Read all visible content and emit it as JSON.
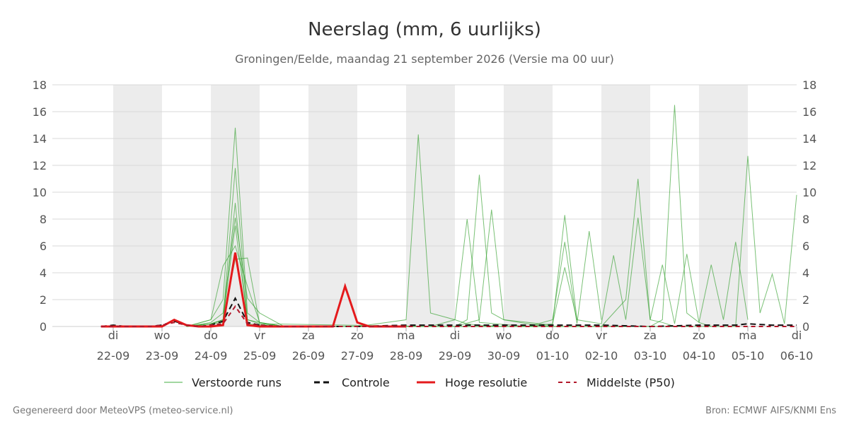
{
  "chart_data": {
    "type": "line",
    "title": "Neerslag (mm, 6 uurlijks)",
    "subtitle": "Groningen/Eelde, maandag 21 september 2026 (Versie ma 00 uur)",
    "ylim": [
      0,
      18
    ],
    "y_ticks": [
      0,
      2,
      4,
      6,
      8,
      10,
      12,
      14,
      16,
      18
    ],
    "x_start": "2026-09-21",
    "x_end": "2026-10-06",
    "x_ticks": [
      {
        "day": "di",
        "date": "22-09"
      },
      {
        "day": "wo",
        "date": "23-09"
      },
      {
        "day": "do",
        "date": "24-09"
      },
      {
        "day": "vr",
        "date": "25-09"
      },
      {
        "day": "za",
        "date": "26-09"
      },
      {
        "day": "zo",
        "date": "27-09"
      },
      {
        "day": "ma",
        "date": "28-09"
      },
      {
        "day": "di",
        "date": "29-09"
      },
      {
        "day": "wo",
        "date": "30-09"
      },
      {
        "day": "do",
        "date": "01-10"
      },
      {
        "day": "vr",
        "date": "02-10"
      },
      {
        "day": "za",
        "date": "03-10"
      },
      {
        "day": "zo",
        "date": "04-10"
      },
      {
        "day": "ma",
        "date": "05-10"
      },
      {
        "day": "di",
        "date": "06-10"
      }
    ],
    "shaded_days": [
      "22-09",
      "24-09",
      "26-09",
      "28-09",
      "30-09",
      "02-10",
      "04-10"
    ],
    "grid": true,
    "legend_position": "bottom",
    "series": [
      {
        "name": "Controle",
        "color": "#111111",
        "dash": "dashed",
        "x": [
          0.75,
          1.0,
          1.25,
          1.5,
          1.75,
          2.0,
          2.25,
          2.5,
          2.75,
          3.0,
          3.25,
          3.5,
          3.75,
          4.0,
          4.25,
          4.5,
          5.0,
          6.0,
          7.0,
          8.0,
          9.0,
          10.0,
          11.0,
          12.0,
          13.0,
          13.75,
          14.0,
          14.5,
          15.0
        ],
        "y": [
          0,
          0.1,
          0,
          0,
          0,
          0.1,
          0.4,
          0.1,
          0,
          0.1,
          0.4,
          2.1,
          0.3,
          0.1,
          0,
          0,
          0,
          0,
          0.1,
          0.1,
          0.1,
          0.1,
          0.1,
          0,
          0.1,
          0.1,
          0.2,
          0.1,
          0.1
        ]
      },
      {
        "name": "Hoge resolutie",
        "color": "#e41a1c",
        "dash": "solid",
        "x": [
          0.75,
          1.0,
          1.25,
          1.5,
          1.75,
          2.0,
          2.25,
          2.5,
          2.75,
          3.0,
          3.25,
          3.5,
          3.75,
          4.0,
          4.25,
          4.5,
          5.0,
          5.25,
          5.5,
          5.75,
          6.0,
          6.25,
          6.5,
          6.75,
          7.0
        ],
        "y": [
          0,
          0,
          0,
          0,
          0,
          0,
          0.5,
          0.1,
          0,
          0,
          0.1,
          5.5,
          0.1,
          0,
          0,
          0,
          0,
          0,
          0,
          3.0,
          0.3,
          0,
          0,
          0,
          0
        ]
      },
      {
        "name": "Middelste (P50)",
        "color": "#b2182b",
        "dash": "dashed",
        "x": [
          0.75,
          1.0,
          1.25,
          1.5,
          1.75,
          2.0,
          2.25,
          2.5,
          2.75,
          3.0,
          3.25,
          3.5,
          3.75,
          4.0,
          4.5,
          5.0,
          6.0,
          7.0,
          8.0,
          9.0,
          10.0,
          11.0,
          12.0,
          13.0,
          14.0,
          15.0
        ],
        "y": [
          0,
          0,
          0,
          0,
          0,
          0.1,
          0.3,
          0.1,
          0,
          0.1,
          0.2,
          1.5,
          0.2,
          0.1,
          0,
          0,
          0,
          0,
          0,
          0,
          0,
          0,
          0,
          0,
          0,
          0
        ]
      },
      {
        "name": "Verstoorde runs (voorbeelden)",
        "color": "#33a02c",
        "dash": "solid",
        "runs": [
          {
            "x": [
              2.5,
              3.0,
              3.25,
              3.5,
              3.75,
              4.0,
              4.5,
              6.0,
              7.0,
              7.25,
              7.5,
              8.0,
              8.25,
              8.5,
              9.0
            ],
            "y": [
              0,
              0.5,
              2.0,
              14.8,
              1.0,
              0.3,
              0,
              0,
              0.5,
              14.3,
              1.0,
              0.5,
              0.2,
              0.1,
              0
            ]
          },
          {
            "x": [
              2.5,
              3.0,
              3.25,
              3.5,
              3.75,
              4.0,
              4.5,
              8.0,
              8.25,
              8.5,
              8.75,
              9.0,
              9.5,
              10.0
            ],
            "y": [
              0,
              0.2,
              0.5,
              11.8,
              0.5,
              0.2,
              0,
              0,
              0.5,
              11.3,
              1.0,
              0.5,
              0.2,
              0
            ]
          },
          {
            "x": [
              2.5,
              3.0,
              3.25,
              3.5,
              3.75,
              4.0,
              4.5,
              8.0,
              8.5,
              8.75,
              9.0,
              9.5,
              10.0,
              10.25,
              10.5
            ],
            "y": [
              0,
              0.2,
              0.3,
              9.2,
              0.2,
              0.1,
              0,
              0,
              0.5,
              8.7,
              0.5,
              0.3,
              0.1,
              8.3,
              0.5
            ]
          },
          {
            "x": [
              2.5,
              3.0,
              3.25,
              3.5,
              3.75,
              4.0,
              4.25,
              4.5,
              11.0,
              11.5,
              11.75,
              12.0,
              12.25,
              12.5
            ],
            "y": [
              0,
              0.3,
              1.0,
              8.1,
              2.1,
              1.0,
              0.5,
              0,
              0,
              2.0,
              11.0,
              0.5,
              0.3,
              0
            ]
          },
          {
            "x": [
              2.5,
              3.0,
              3.25,
              3.5,
              3.75,
              4.0,
              4.5,
              12.0,
              12.25,
              12.5,
              12.75,
              13.0,
              13.25
            ],
            "y": [
              0,
              0.2,
              0.5,
              7.5,
              0.5,
              0.3,
              0,
              0,
              0.5,
              16.5,
              1.0,
              0.3,
              0
            ]
          },
          {
            "x": [
              2.5,
              3.0,
              3.25,
              3.5,
              3.75,
              4.0,
              4.5,
              13.75,
              14.0,
              14.25,
              14.5,
              14.75,
              15.0
            ],
            "y": [
              0,
              0.5,
              4.5,
              6.0,
              3.0,
              0.3,
              0,
              0,
              12.7,
              1.0,
              3.9,
              0.2,
              9.8
            ]
          },
          {
            "x": [
              2.5,
              3.0,
              3.25,
              3.5,
              3.75,
              4.0,
              7.5,
              8.0,
              8.25,
              8.5,
              9.5,
              10.0,
              10.25,
              10.5,
              10.75,
              11.0
            ],
            "y": [
              0,
              0.2,
              0.5,
              5.0,
              5.1,
              0.2,
              0,
              0.5,
              8.0,
              0.3,
              0,
              0.5,
              6.3,
              0.2,
              7.1,
              0.5
            ]
          },
          {
            "x": [
              9.5,
              10.0,
              10.25,
              10.5,
              11.0,
              11.25,
              11.5,
              11.75,
              12.0,
              12.25,
              12.5,
              12.75,
              13.0,
              13.25,
              13.5,
              13.75,
              14.0
            ],
            "y": [
              0,
              0.2,
              4.4,
              0.5,
              0.2,
              5.3,
              0.5,
              8.1,
              0.5,
              4.6,
              0.2,
              5.4,
              0.3,
              4.6,
              0.5,
              6.3,
              0.5
            ]
          }
        ]
      }
    ]
  },
  "legend": {
    "perturbed_label": "Verstoorde runs",
    "control_label": "Controle",
    "hires_label": "Hoge resolutie",
    "median_label": "Middelste (P50)"
  },
  "footer": {
    "left": "Gegenereerd door MeteoVPS (meteo-service.nl)",
    "right": "Bron: ECMWF AIFS/KNMI Ens"
  }
}
